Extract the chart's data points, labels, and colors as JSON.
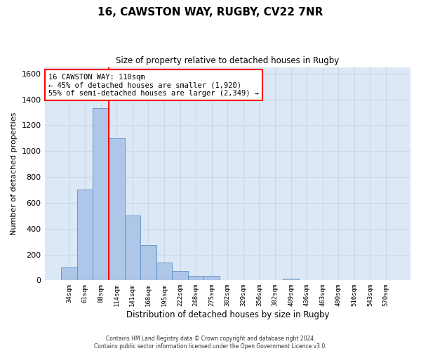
{
  "title": "16, CAWSTON WAY, RUGBY, CV22 7NR",
  "subtitle": "Size of property relative to detached houses in Rugby",
  "xlabel": "Distribution of detached houses by size in Rugby",
  "ylabel": "Number of detached properties",
  "footer_line1": "Contains HM Land Registry data © Crown copyright and database right 2024.",
  "footer_line2": "Contains public sector information licensed under the Open Government Licence v3.0.",
  "annotation_title": "16 CAWSTON WAY: 110sqm",
  "annotation_line1": "← 45% of detached houses are smaller (1,920)",
  "annotation_line2": "55% of semi-detached houses are larger (2,349) →",
  "bar_labels": [
    "34sqm",
    "61sqm",
    "88sqm",
    "114sqm",
    "141sqm",
    "168sqm",
    "195sqm",
    "222sqm",
    "248sqm",
    "275sqm",
    "302sqm",
    "329sqm",
    "356sqm",
    "382sqm",
    "409sqm",
    "436sqm",
    "463sqm",
    "490sqm",
    "516sqm",
    "543sqm",
    "570sqm"
  ],
  "bar_values": [
    100,
    700,
    1330,
    1100,
    500,
    275,
    135,
    70,
    35,
    35,
    0,
    0,
    0,
    0,
    15,
    0,
    0,
    0,
    0,
    0,
    0
  ],
  "bar_color": "#aec6e8",
  "bar_edge_color": "#5b8fc9",
  "vline_color": "red",
  "annotation_box_color": "red",
  "ylim": [
    0,
    1650
  ],
  "yticks": [
    0,
    200,
    400,
    600,
    800,
    1000,
    1200,
    1400,
    1600
  ],
  "grid_color": "#c8d8e8",
  "bg_color": "#dce8f5"
}
